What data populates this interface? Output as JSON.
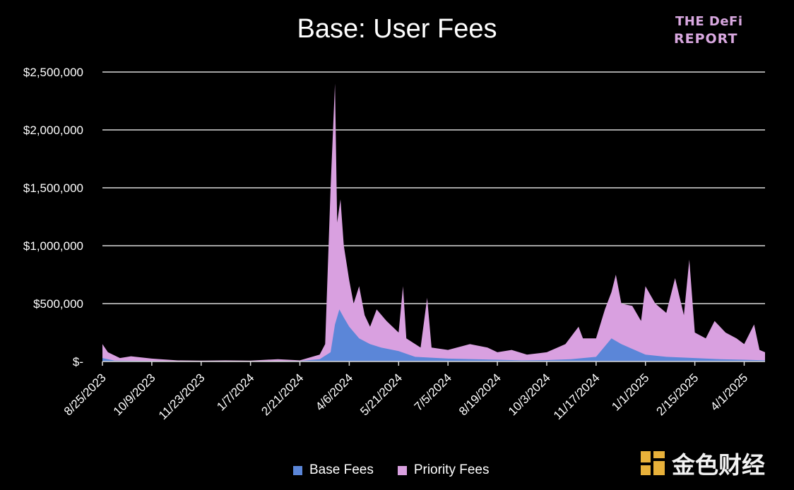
{
  "logo": {
    "line1": "THE DeFi",
    "line2": "REPORT"
  },
  "watermark": {
    "text": "金色财经"
  },
  "colors": {
    "base": "#5b86d8",
    "priority": "#d9a0e0",
    "grid": "#d9d9d9",
    "background": "#000000"
  },
  "chart_data": {
    "type": "area",
    "title": "Base: User Fees",
    "stacked": true,
    "x_start": "8/25/2023",
    "x_end": "4/20/2025",
    "x_tick_labels": [
      "8/25/2023",
      "10/9/2023",
      "11/23/2023",
      "1/7/2024",
      "2/21/2024",
      "4/6/2024",
      "5/21/2024",
      "7/5/2024",
      "8/19/2024",
      "10/3/2024",
      "11/17/2024",
      "1/1/2025",
      "2/15/2025",
      "4/1/2025"
    ],
    "y_tick_labels": [
      "$-",
      "$500,000",
      "$1,000,000",
      "$1,500,000",
      "$2,000,000",
      "$2,500,000"
    ],
    "ylim": [
      0,
      2500000
    ],
    "grid": true,
    "legend_position": "bottom",
    "series": [
      {
        "name": "Base Fees",
        "color": "#5b86d8",
        "points": [
          [
            "8/25/2023",
            30000
          ],
          [
            "9/5/2023",
            8000
          ],
          [
            "10/9/2023",
            5000
          ],
          [
            "11/23/2023",
            2000
          ],
          [
            "1/7/2024",
            2000
          ],
          [
            "2/21/2024",
            5000
          ],
          [
            "3/10/2024",
            20000
          ],
          [
            "3/20/2024",
            80000
          ],
          [
            "3/24/2024",
            320000
          ],
          [
            "3/28/2024",
            450000
          ],
          [
            "4/1/2024",
            380000
          ],
          [
            "4/6/2024",
            300000
          ],
          [
            "4/15/2024",
            200000
          ],
          [
            "4/25/2024",
            150000
          ],
          [
            "5/5/2024",
            120000
          ],
          [
            "5/21/2024",
            90000
          ],
          [
            "6/5/2024",
            40000
          ],
          [
            "7/5/2024",
            25000
          ],
          [
            "8/19/2024",
            15000
          ],
          [
            "9/10/2024",
            10000
          ],
          [
            "10/3/2024",
            12000
          ],
          [
            "10/25/2024",
            20000
          ],
          [
            "11/17/2024",
            40000
          ],
          [
            "12/1/2024",
            200000
          ],
          [
            "12/10/2024",
            150000
          ],
          [
            "1/1/2025",
            60000
          ],
          [
            "1/20/2025",
            40000
          ],
          [
            "2/15/2025",
            30000
          ],
          [
            "3/10/2025",
            20000
          ],
          [
            "4/1/2025",
            15000
          ],
          [
            "4/20/2025",
            10000
          ]
        ]
      },
      {
        "name": "Priority Fees",
        "color": "#d9a0e0",
        "points": [
          [
            "8/25/2023",
            150000
          ],
          [
            "8/30/2023",
            80000
          ],
          [
            "9/10/2023",
            30000
          ],
          [
            "9/20/2023",
            45000
          ],
          [
            "10/9/2023",
            25000
          ],
          [
            "11/1/2023",
            10000
          ],
          [
            "11/23/2023",
            8000
          ],
          [
            "12/15/2023",
            10000
          ],
          [
            "1/7/2024",
            8000
          ],
          [
            "2/1/2024",
            20000
          ],
          [
            "2/21/2024",
            10000
          ],
          [
            "3/10/2024",
            60000
          ],
          [
            "3/15/2024",
            150000
          ],
          [
            "3/20/2024",
            1500000
          ],
          [
            "3/24/2024",
            2400000
          ],
          [
            "3/26/2024",
            1200000
          ],
          [
            "3/29/2024",
            1400000
          ],
          [
            "4/1/2024",
            1000000
          ],
          [
            "4/6/2024",
            700000
          ],
          [
            "4/10/2024",
            500000
          ],
          [
            "4/15/2024",
            650000
          ],
          [
            "4/20/2024",
            400000
          ],
          [
            "4/25/2024",
            300000
          ],
          [
            "5/1/2024",
            450000
          ],
          [
            "5/10/2024",
            350000
          ],
          [
            "5/21/2024",
            250000
          ],
          [
            "5/25/2024",
            650000
          ],
          [
            "5/28/2024",
            200000
          ],
          [
            "6/10/2024",
            120000
          ],
          [
            "6/16/2024",
            550000
          ],
          [
            "6/20/2024",
            120000
          ],
          [
            "7/5/2024",
            100000
          ],
          [
            "7/25/2024",
            150000
          ],
          [
            "8/10/2024",
            120000
          ],
          [
            "8/19/2024",
            80000
          ],
          [
            "9/1/2024",
            100000
          ],
          [
            "9/15/2024",
            60000
          ],
          [
            "10/3/2024",
            80000
          ],
          [
            "10/20/2024",
            150000
          ],
          [
            "11/1/2024",
            300000
          ],
          [
            "11/5/2024",
            200000
          ],
          [
            "11/17/2024",
            200000
          ],
          [
            "11/25/2024",
            450000
          ],
          [
            "12/1/2024",
            600000
          ],
          [
            "12/5/2024",
            750000
          ],
          [
            "12/10/2024",
            500000
          ],
          [
            "12/20/2024",
            480000
          ],
          [
            "12/28/2024",
            350000
          ],
          [
            "1/1/2025",
            650000
          ],
          [
            "1/10/2025",
            500000
          ],
          [
            "1/20/2025",
            420000
          ],
          [
            "1/28/2025",
            720000
          ],
          [
            "2/5/2025",
            400000
          ],
          [
            "2/10/2025",
            880000
          ],
          [
            "2/15/2025",
            250000
          ],
          [
            "2/25/2025",
            200000
          ],
          [
            "3/5/2025",
            350000
          ],
          [
            "3/15/2025",
            250000
          ],
          [
            "3/25/2025",
            200000
          ],
          [
            "4/1/2025",
            150000
          ],
          [
            "4/10/2025",
            320000
          ],
          [
            "4/15/2025",
            100000
          ],
          [
            "4/20/2025",
            80000
          ]
        ]
      }
    ]
  }
}
